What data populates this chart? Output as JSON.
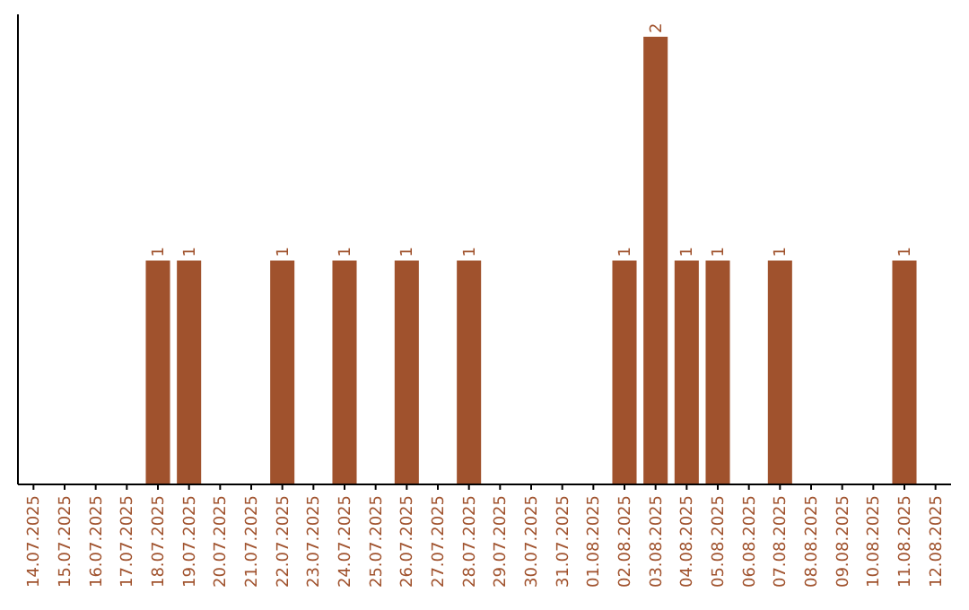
{
  "chart_data": {
    "type": "bar",
    "categories": [
      "14.07.2025",
      "15.07.2025",
      "16.07.2025",
      "17.07.2025",
      "18.07.2025",
      "19.07.2025",
      "20.07.2025",
      "21.07.2025",
      "22.07.2025",
      "23.07.2025",
      "24.07.2025",
      "25.07.2025",
      "26.07.2025",
      "27.07.2025",
      "28.07.2025",
      "29.07.2025",
      "30.07.2025",
      "31.07.2025",
      "01.08.2025",
      "02.08.2025",
      "03.08.2025",
      "04.08.2025",
      "05.08.2025",
      "06.08.2025",
      "07.08.2025",
      "08.08.2025",
      "09.08.2025",
      "10.08.2025",
      "11.08.2025",
      "12.08.2025"
    ],
    "values": [
      0,
      0,
      0,
      0,
      1,
      1,
      0,
      0,
      1,
      0,
      1,
      0,
      1,
      0,
      1,
      0,
      0,
      0,
      0,
      1,
      2,
      1,
      1,
      0,
      1,
      0,
      0,
      0,
      1,
      0
    ],
    "value_labels": [
      null,
      null,
      null,
      null,
      "1",
      "1",
      null,
      null,
      "1",
      null,
      "1",
      null,
      "1",
      null,
      "1",
      null,
      null,
      null,
      null,
      "1",
      "2",
      "1",
      "1",
      null,
      "1",
      null,
      null,
      null,
      "1",
      null
    ],
    "color": "#a0522d"
  }
}
